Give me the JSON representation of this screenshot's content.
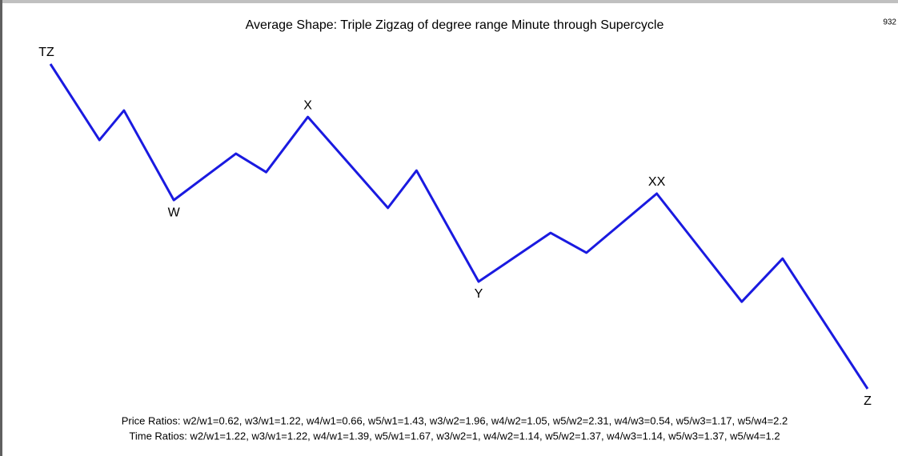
{
  "chart_data": {
    "type": "line",
    "title": "Average Shape: Triple Zigzag of degree range Minute through Supercycle",
    "corner_label": "932",
    "x": [
      0,
      6.0,
      9.0,
      15.1,
      22.7,
      26.4,
      31.5,
      41.3,
      44.8,
      52.4,
      61.2,
      65.6,
      74.2,
      84.6,
      89.6,
      100
    ],
    "series": [
      {
        "name": "Triple Zigzag",
        "color": "#1a1ae0",
        "values": [
          100,
          76.6,
          85.7,
          58.1,
          72.4,
          66.7,
          83.7,
          55.7,
          67.2,
          33.0,
          48.0,
          41.9,
          60.1,
          26.8,
          40.1,
          0
        ]
      }
    ],
    "point_labels": [
      "TZ",
      null,
      null,
      "W",
      null,
      null,
      "X",
      null,
      null,
      "Y",
      null,
      null,
      "XX",
      null,
      null,
      "Z"
    ],
    "xlim": [
      0,
      100
    ],
    "ylim": [
      0,
      100
    ],
    "notes": [
      "Price Ratios: w2/w1=0.62, w3/w1=1.22, w4/w1=0.66, w5/w1=1.43, w3/w2=1.96, w4/w2=1.05, w5/w2=2.31, w4/w3=0.54, w5/w3=1.17, w5/w4=2.2",
      "Time Ratios: w2/w1=1.22, w3/w1=1.22, w4/w1=1.39, w5/w1=1.67, w3/w2=1, w4/w2=1.14, w5/w2=1.37, w4/w3=1.14, w5/w3=1.37, w5/w4=1.2"
    ]
  }
}
